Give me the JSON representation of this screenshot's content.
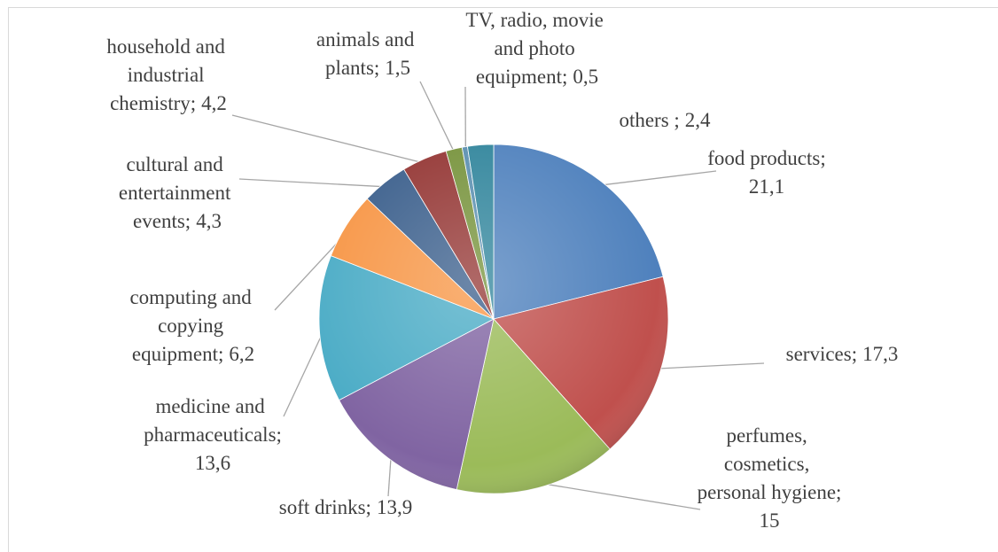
{
  "chart_data": {
    "type": "pie",
    "categories": [
      "food products;",
      "services;",
      "perfumes, cosmetics, personal hygiene;",
      "soft drinks;",
      "medicine and pharmaceuticals;",
      "computing and copying equipment;",
      "cultural and entertainment events;",
      "household and industrial chemistry;",
      "animals and plants;",
      "TV, radio, movie and photo equipment;",
      "others ;"
    ],
    "values": [
      21.1,
      17.3,
      15,
      13.9,
      13.6,
      6.2,
      4.3,
      4.2,
      1.5,
      0.5,
      2.4
    ],
    "value_labels": [
      "21,1",
      "17,3",
      "15",
      "13,9",
      "13,6",
      "6,2",
      "4,3",
      "4,2",
      "1,5",
      "0,5",
      "2,4"
    ],
    "colors": [
      "#4f81bd",
      "#c0504d",
      "#9bbb59",
      "#8064a2",
      "#4bacc6",
      "#f79646",
      "#3b5f8c",
      "#943634",
      "#77933c",
      "#5b8fb0",
      "#31859c"
    ]
  }
}
